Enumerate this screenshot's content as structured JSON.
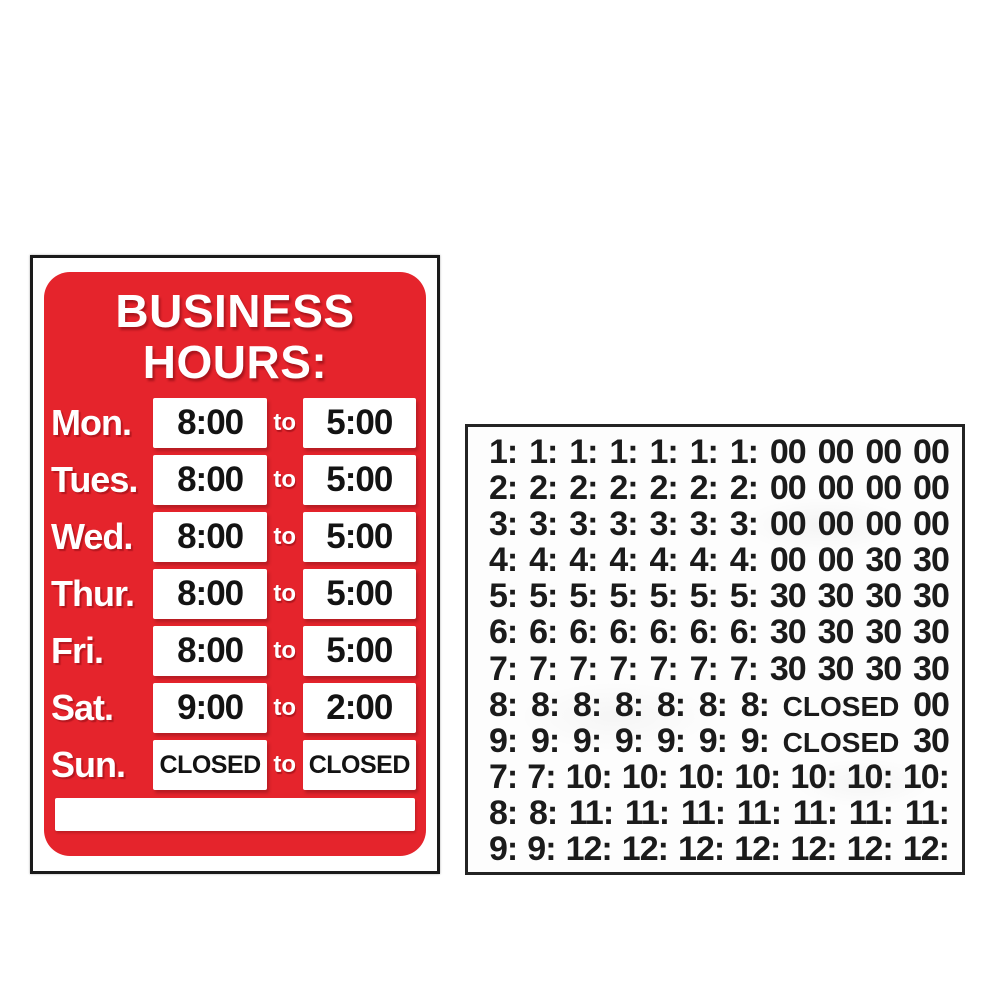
{
  "photo": {
    "background_color": "#ffffff"
  },
  "sign": {
    "title_line1": "BUSINESS",
    "title_line2": "HOURS:",
    "to_label": "to",
    "closed_label": "CLOSED",
    "rows": [
      {
        "day": "Mon.",
        "open": "8:00",
        "close": "5:00"
      },
      {
        "day": "Tues.",
        "open": "8:00",
        "close": "5:00"
      },
      {
        "day": "Wed.",
        "open": "8:00",
        "close": "5:00"
      },
      {
        "day": "Thur.",
        "open": "8:00",
        "close": "5:00"
      },
      {
        "day": "Fri.",
        "open": "8:00",
        "close": "5:00"
      },
      {
        "day": "Sat.",
        "open": "9:00",
        "close": "2:00"
      },
      {
        "day": "Sun.",
        "open": "CLOSED",
        "close": "CLOSED"
      }
    ],
    "colors": {
      "red": "#e5242c",
      "label_text": "#ffffff",
      "time_text": "#131313",
      "border": "#1a1a1a",
      "box_fill": "#ffffff"
    }
  },
  "sticker_sheet": {
    "rows": [
      [
        "1:",
        "1:",
        "1:",
        "1:",
        "1:",
        "1:",
        "1:",
        "00",
        "00",
        "00",
        "00"
      ],
      [
        "2:",
        "2:",
        "2:",
        "2:",
        "2:",
        "2:",
        "2:",
        "00",
        "00",
        "00",
        "00"
      ],
      [
        "3:",
        "3:",
        "3:",
        "3:",
        "3:",
        "3:",
        "3:",
        "00",
        "00",
        "00",
        "00"
      ],
      [
        "4:",
        "4:",
        "4:",
        "4:",
        "4:",
        "4:",
        "4:",
        "00",
        "00",
        "30",
        "30"
      ],
      [
        "5:",
        "5:",
        "5:",
        "5:",
        "5:",
        "5:",
        "5:",
        "30",
        "30",
        "30",
        "30"
      ],
      [
        "6:",
        "6:",
        "6:",
        "6:",
        "6:",
        "6:",
        "6:",
        "30",
        "30",
        "30",
        "30"
      ],
      [
        "7:",
        "7:",
        "7:",
        "7:",
        "7:",
        "7:",
        "7:",
        "30",
        "30",
        "30",
        "30"
      ],
      [
        "8:",
        "8:",
        "8:",
        "8:",
        "8:",
        "8:",
        "8:",
        "CLOSED",
        "00"
      ],
      [
        "9:",
        "9:",
        "9:",
        "9:",
        "9:",
        "9:",
        "9:",
        "CLOSED",
        "30"
      ],
      [
        "7:",
        "7:",
        "10:",
        "10:",
        "10:",
        "10:",
        "10:",
        "10:",
        "10:"
      ],
      [
        "8:",
        "8:",
        "11:",
        "11:",
        "11:",
        "11:",
        "11:",
        "11:",
        "11:"
      ],
      [
        "9:",
        "9:",
        "12:",
        "12:",
        "12:",
        "12:",
        "12:",
        "12:",
        "12:"
      ]
    ],
    "colors": {
      "text": "#1b1b1b",
      "border": "#242424",
      "fill": "#fdfdfd"
    }
  }
}
